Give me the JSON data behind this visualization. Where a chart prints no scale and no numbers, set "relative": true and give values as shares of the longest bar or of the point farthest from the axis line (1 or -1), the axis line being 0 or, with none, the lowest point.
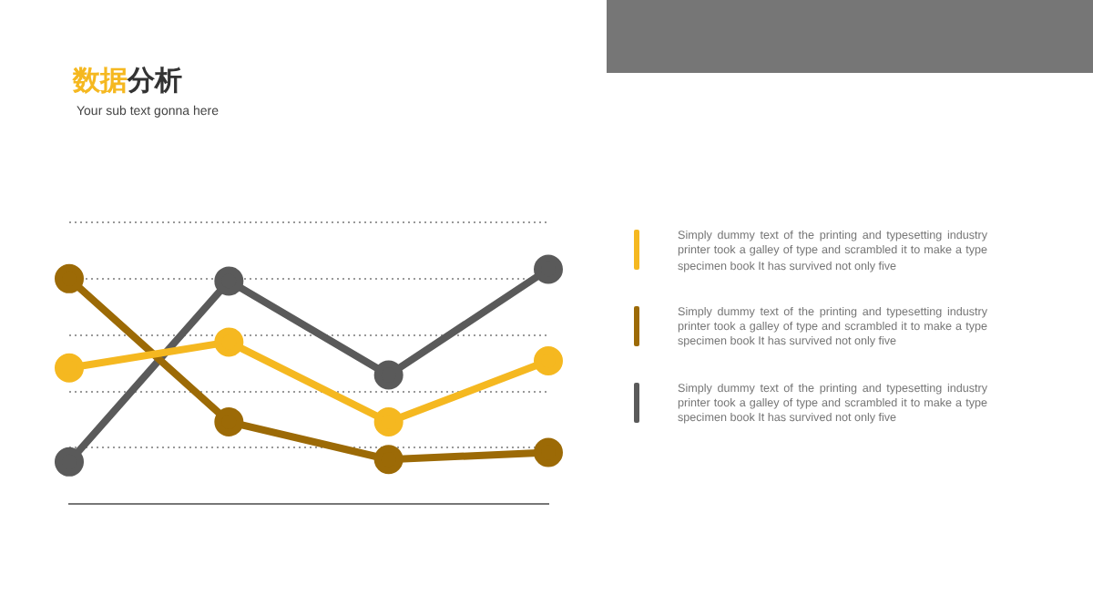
{
  "chart_data": {
    "type": "line",
    "title": "数据分析",
    "subtitle": "Your sub text gonna here",
    "relative": true,
    "categories": [
      null,
      null,
      null,
      null
    ],
    "grid": "y",
    "marker": "circle",
    "line_style": "solid",
    "annotations": [
      "Simply dummy text of the printing and typesetting industry printer took a galley of type and scrambled it to make a type specimen book It has survived not only five",
      "Simply dummy text of the printing and typesetting industry printer took a galley of type and scrambled it to make a type specimen book It has survived not only five",
      "Simply dummy text of the printing and typesetting industry printer took a galley of type and scrambled it to make a type specimen book It has survived not only five"
    ],
    "series": [
      {
        "color": "#f5b820",
        "values": [
          0.58,
          0.69,
          0.35,
          0.61
        ]
      },
      {
        "color": "#9c6a06",
        "values": [
          0.96,
          0.35,
          0.19,
          0.22
        ]
      },
      {
        "color": "#5a5a5a",
        "values": [
          0.18,
          0.95,
          0.55,
          1
        ]
      }
    ]
  }
}
